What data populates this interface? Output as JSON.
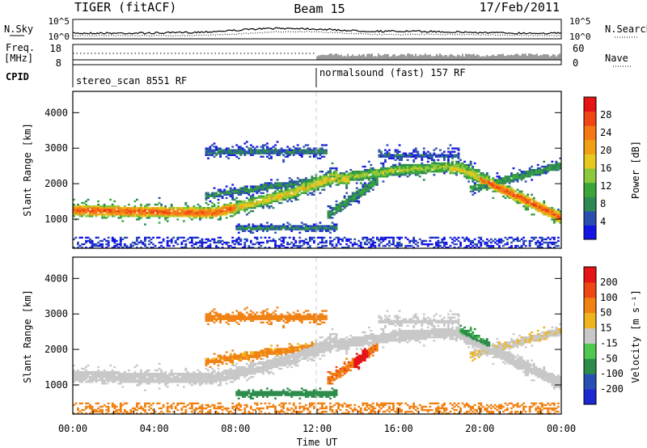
{
  "header": {
    "station": "TIGER (fitACF)",
    "beam": "Beam 15",
    "date": "17/Feb/2011"
  },
  "panels": {
    "nsky": {
      "left_label": "N.Sky",
      "right_label": "N.Search",
      "left_ticks": [
        "10^5",
        "10^0"
      ],
      "right_ticks": [
        "10^5",
        "10^0"
      ]
    },
    "freq": {
      "left_label_line1": "Freq.",
      "left_label_line2": "[MHz]",
      "right_label": "Nave",
      "left_ticks": [
        "18",
        "8"
      ],
      "right_ticks": [
        "60",
        "0"
      ]
    },
    "cpid": {
      "label": "CPID",
      "modes": [
        "stereo_scan 8551 RF",
        "normalsound (fast) 157 RF"
      ]
    }
  },
  "chart_data": [
    {
      "type": "heatmap",
      "panel": "power",
      "xlabel": "",
      "ylabel": "Slant Range [km]",
      "x_ticks": [
        "00:00",
        "04:00",
        "08:00",
        "12:00",
        "16:00",
        "20:00",
        "00:00"
      ],
      "y_ticks": [
        1000,
        2000,
        3000,
        4000
      ],
      "xlim_hours": [
        0,
        24
      ],
      "ylim_km": [
        180,
        4600
      ],
      "colorbar": {
        "label": "Power [dB]",
        "ticks": [
          4,
          8,
          12,
          16,
          20,
          24,
          28
        ],
        "range": [
          0,
          32
        ],
        "colors": [
          "#1414e6",
          "#2a4fb0",
          "#2e8a52",
          "#3aa63a",
          "#8cc83c",
          "#e6c81e",
          "#f0a014",
          "#f57814",
          "#f04614",
          "#e61414"
        ]
      }
    },
    {
      "type": "heatmap",
      "panel": "velocity",
      "xlabel": "Time UT",
      "ylabel": "Slant Range [km]",
      "x_ticks": [
        "00:00",
        "04:00",
        "08:00",
        "12:00",
        "16:00",
        "20:00",
        "00:00"
      ],
      "y_ticks": [
        1000,
        2000,
        3000,
        4000
      ],
      "xlim_hours": [
        0,
        24
      ],
      "ylim_km": [
        180,
        4600
      ],
      "colorbar": {
        "label": "Velocity [m s⁻¹]",
        "ticks": [
          "200",
          "100",
          "50",
          "15",
          "-15",
          "-50",
          "-100",
          "-200"
        ],
        "colors": [
          "#1e28d2",
          "#2850b4",
          "#2d8c4b",
          "#50c850",
          "#c8c8c8",
          "#f0b41e",
          "#f08214",
          "#f04614",
          "#e61414"
        ]
      }
    }
  ],
  "colors": {
    "cpid_divider": "#aaaaaa",
    "gray_ground": "#c8c8c8"
  }
}
